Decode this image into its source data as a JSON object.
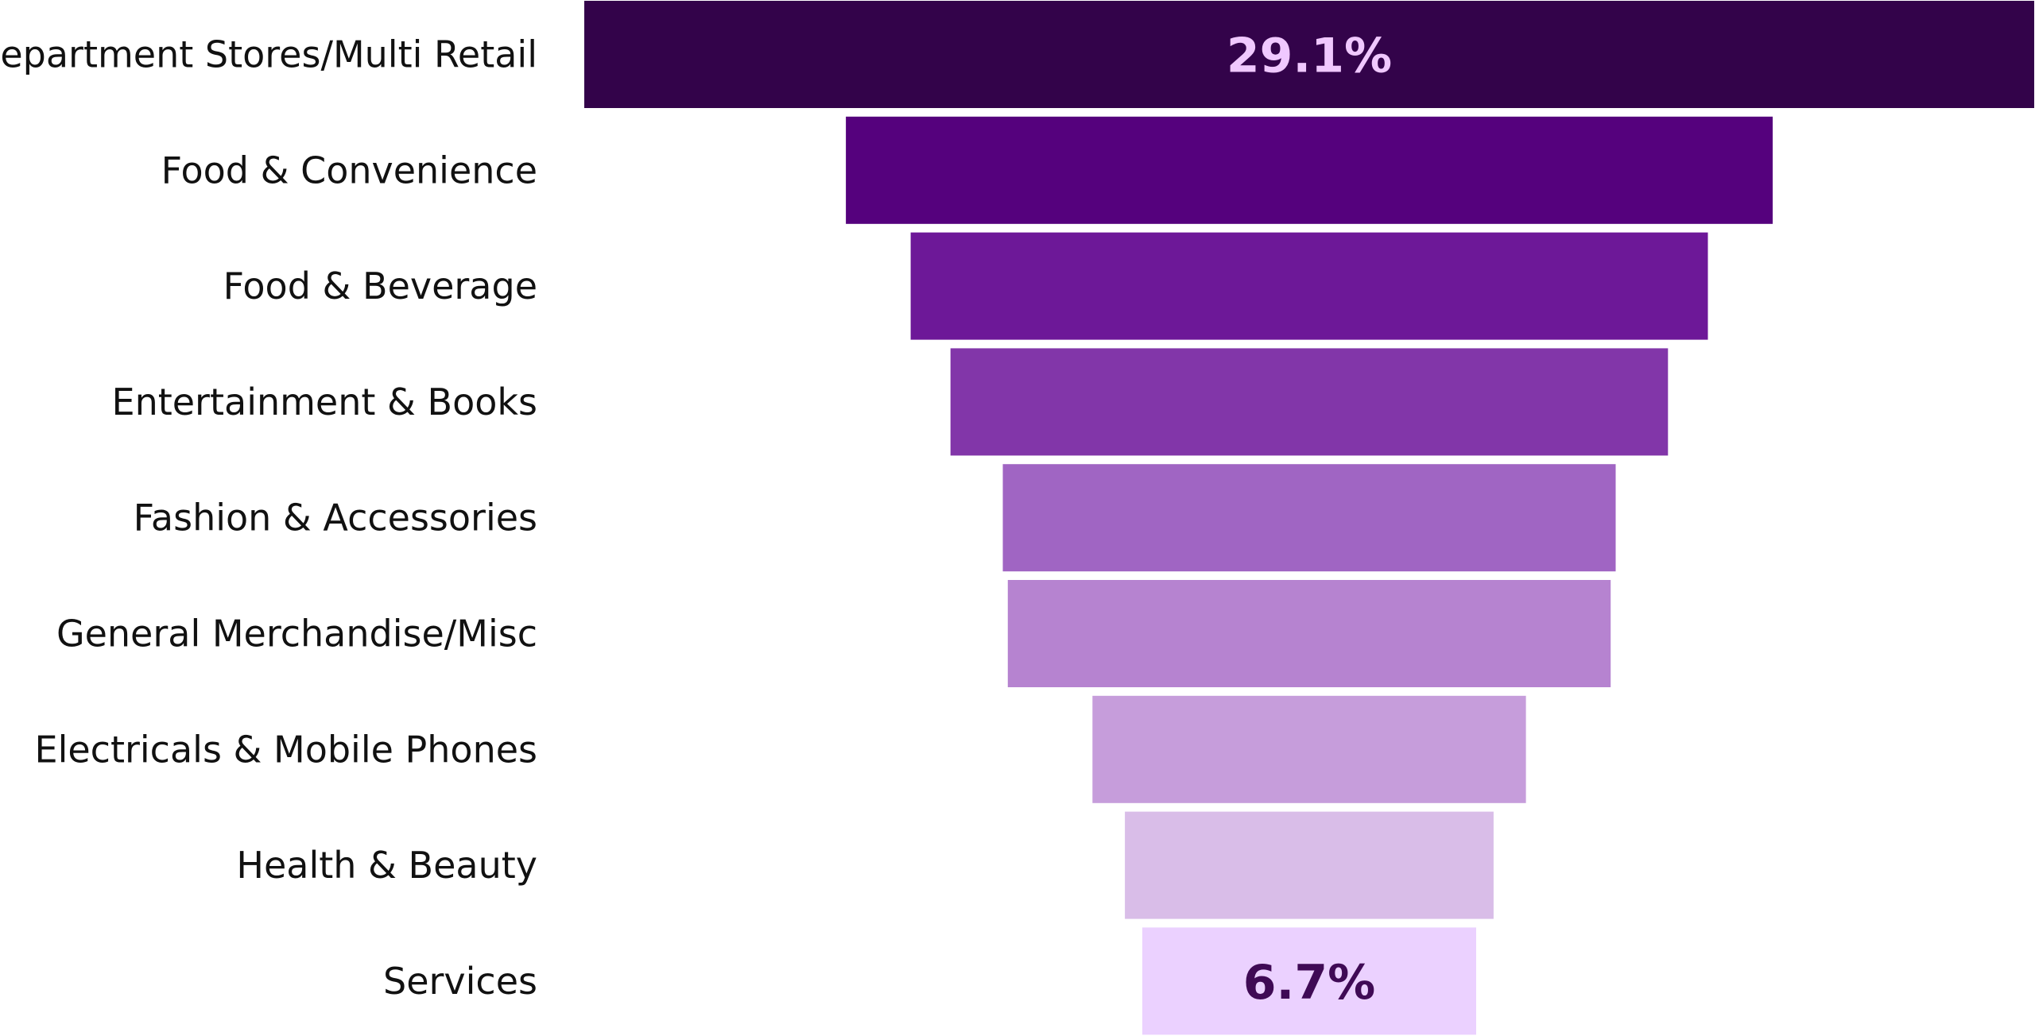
{
  "chart_data": {
    "type": "bar",
    "subtype": "funnel",
    "title": "",
    "xlabel": "",
    "ylabel": "",
    "categories": [
      "Department Stores/Multi Retail",
      "Food & Convenience",
      "Food & Beverage",
      "Entertainment & Books",
      "Fashion & Accessories",
      "General Merchandise/Misc",
      "Electricals & Mobile Phones",
      "Health & Beauty",
      "Services"
    ],
    "values": [
      29.1,
      18.6,
      16.0,
      14.4,
      12.3,
      12.1,
      8.7,
      7.4,
      6.7
    ],
    "unit": "%",
    "shown_labels": {
      "0": "29.1%",
      "8": "6.7%"
    },
    "colors": [
      "#33034a",
      "#55017d",
      "#6d1898",
      "#8236a9",
      "#a065c3",
      "#b683d0",
      "#c69ddb",
      "#d9bde8",
      "#ebd1ff"
    ],
    "label_colors": {
      "0": "#f0c8ff",
      "8": "#3f0a55"
    },
    "legend": "none",
    "grid": false
  }
}
